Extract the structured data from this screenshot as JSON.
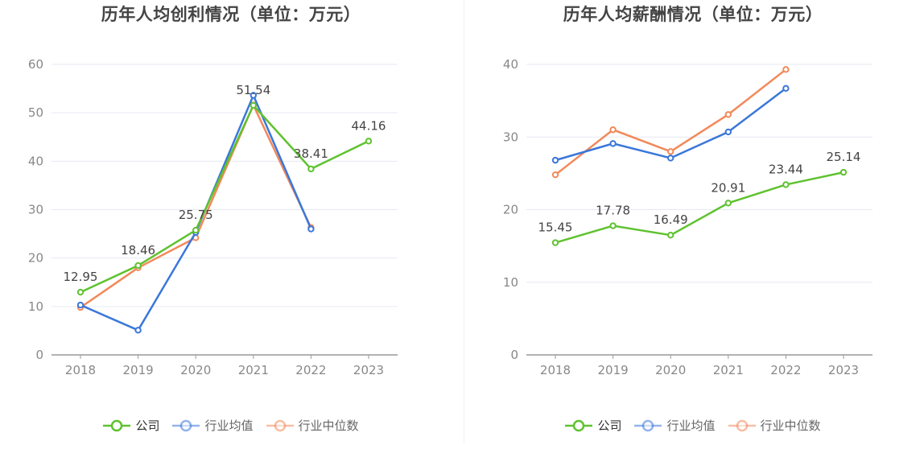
{
  "colors": {
    "company": "#5fc22f",
    "avg": "#3b77db",
    "median": "#f2895a",
    "grid": "#e6e9f3",
    "axis": "#999999"
  },
  "legend_labels": [
    "公司",
    "行业均值",
    "行业中位数"
  ],
  "chart_data": [
    {
      "type": "line",
      "title": "历年人均创利情况（单位：万元）",
      "categories": [
        "2018",
        "2019",
        "2020",
        "2021",
        "2022",
        "2023"
      ],
      "ylim": [
        0,
        60
      ],
      "yticks": [
        "0",
        "10",
        "20",
        "30",
        "40",
        "50",
        "60"
      ],
      "grid": true,
      "legend_position": "bottom",
      "series": [
        {
          "name": "公司",
          "values": [
            12.95,
            18.46,
            25.75,
            51.54,
            38.41,
            44.16
          ],
          "labels": [
            "12.95",
            "18.46",
            "25.75",
            "51.54",
            "38.41",
            "44.16"
          ]
        },
        {
          "name": "行业均值",
          "values": [
            10.3,
            5.1,
            25.3,
            53.6,
            26.0,
            null
          ]
        },
        {
          "name": "行业中位数",
          "values": [
            9.8,
            18.0,
            24.2,
            51.6,
            26.3,
            null
          ]
        }
      ]
    },
    {
      "type": "line",
      "title": "历年人均薪酬情况（单位：万元）",
      "categories": [
        "2018",
        "2019",
        "2020",
        "2021",
        "2022",
        "2023"
      ],
      "ylim": [
        0,
        40
      ],
      "yticks": [
        "0",
        "10",
        "20",
        "30",
        "40"
      ],
      "grid": true,
      "legend_position": "bottom",
      "series": [
        {
          "name": "公司",
          "values": [
            15.45,
            17.78,
            16.49,
            20.91,
            23.44,
            25.14
          ],
          "labels": [
            "15.45",
            "17.78",
            "16.49",
            "20.91",
            "23.44",
            "25.14"
          ]
        },
        {
          "name": "行业均值",
          "values": [
            26.8,
            29.1,
            27.1,
            30.7,
            36.7,
            null
          ]
        },
        {
          "name": "行业中位数",
          "values": [
            24.8,
            31.0,
            28.0,
            33.1,
            39.3,
            null
          ]
        }
      ]
    }
  ]
}
